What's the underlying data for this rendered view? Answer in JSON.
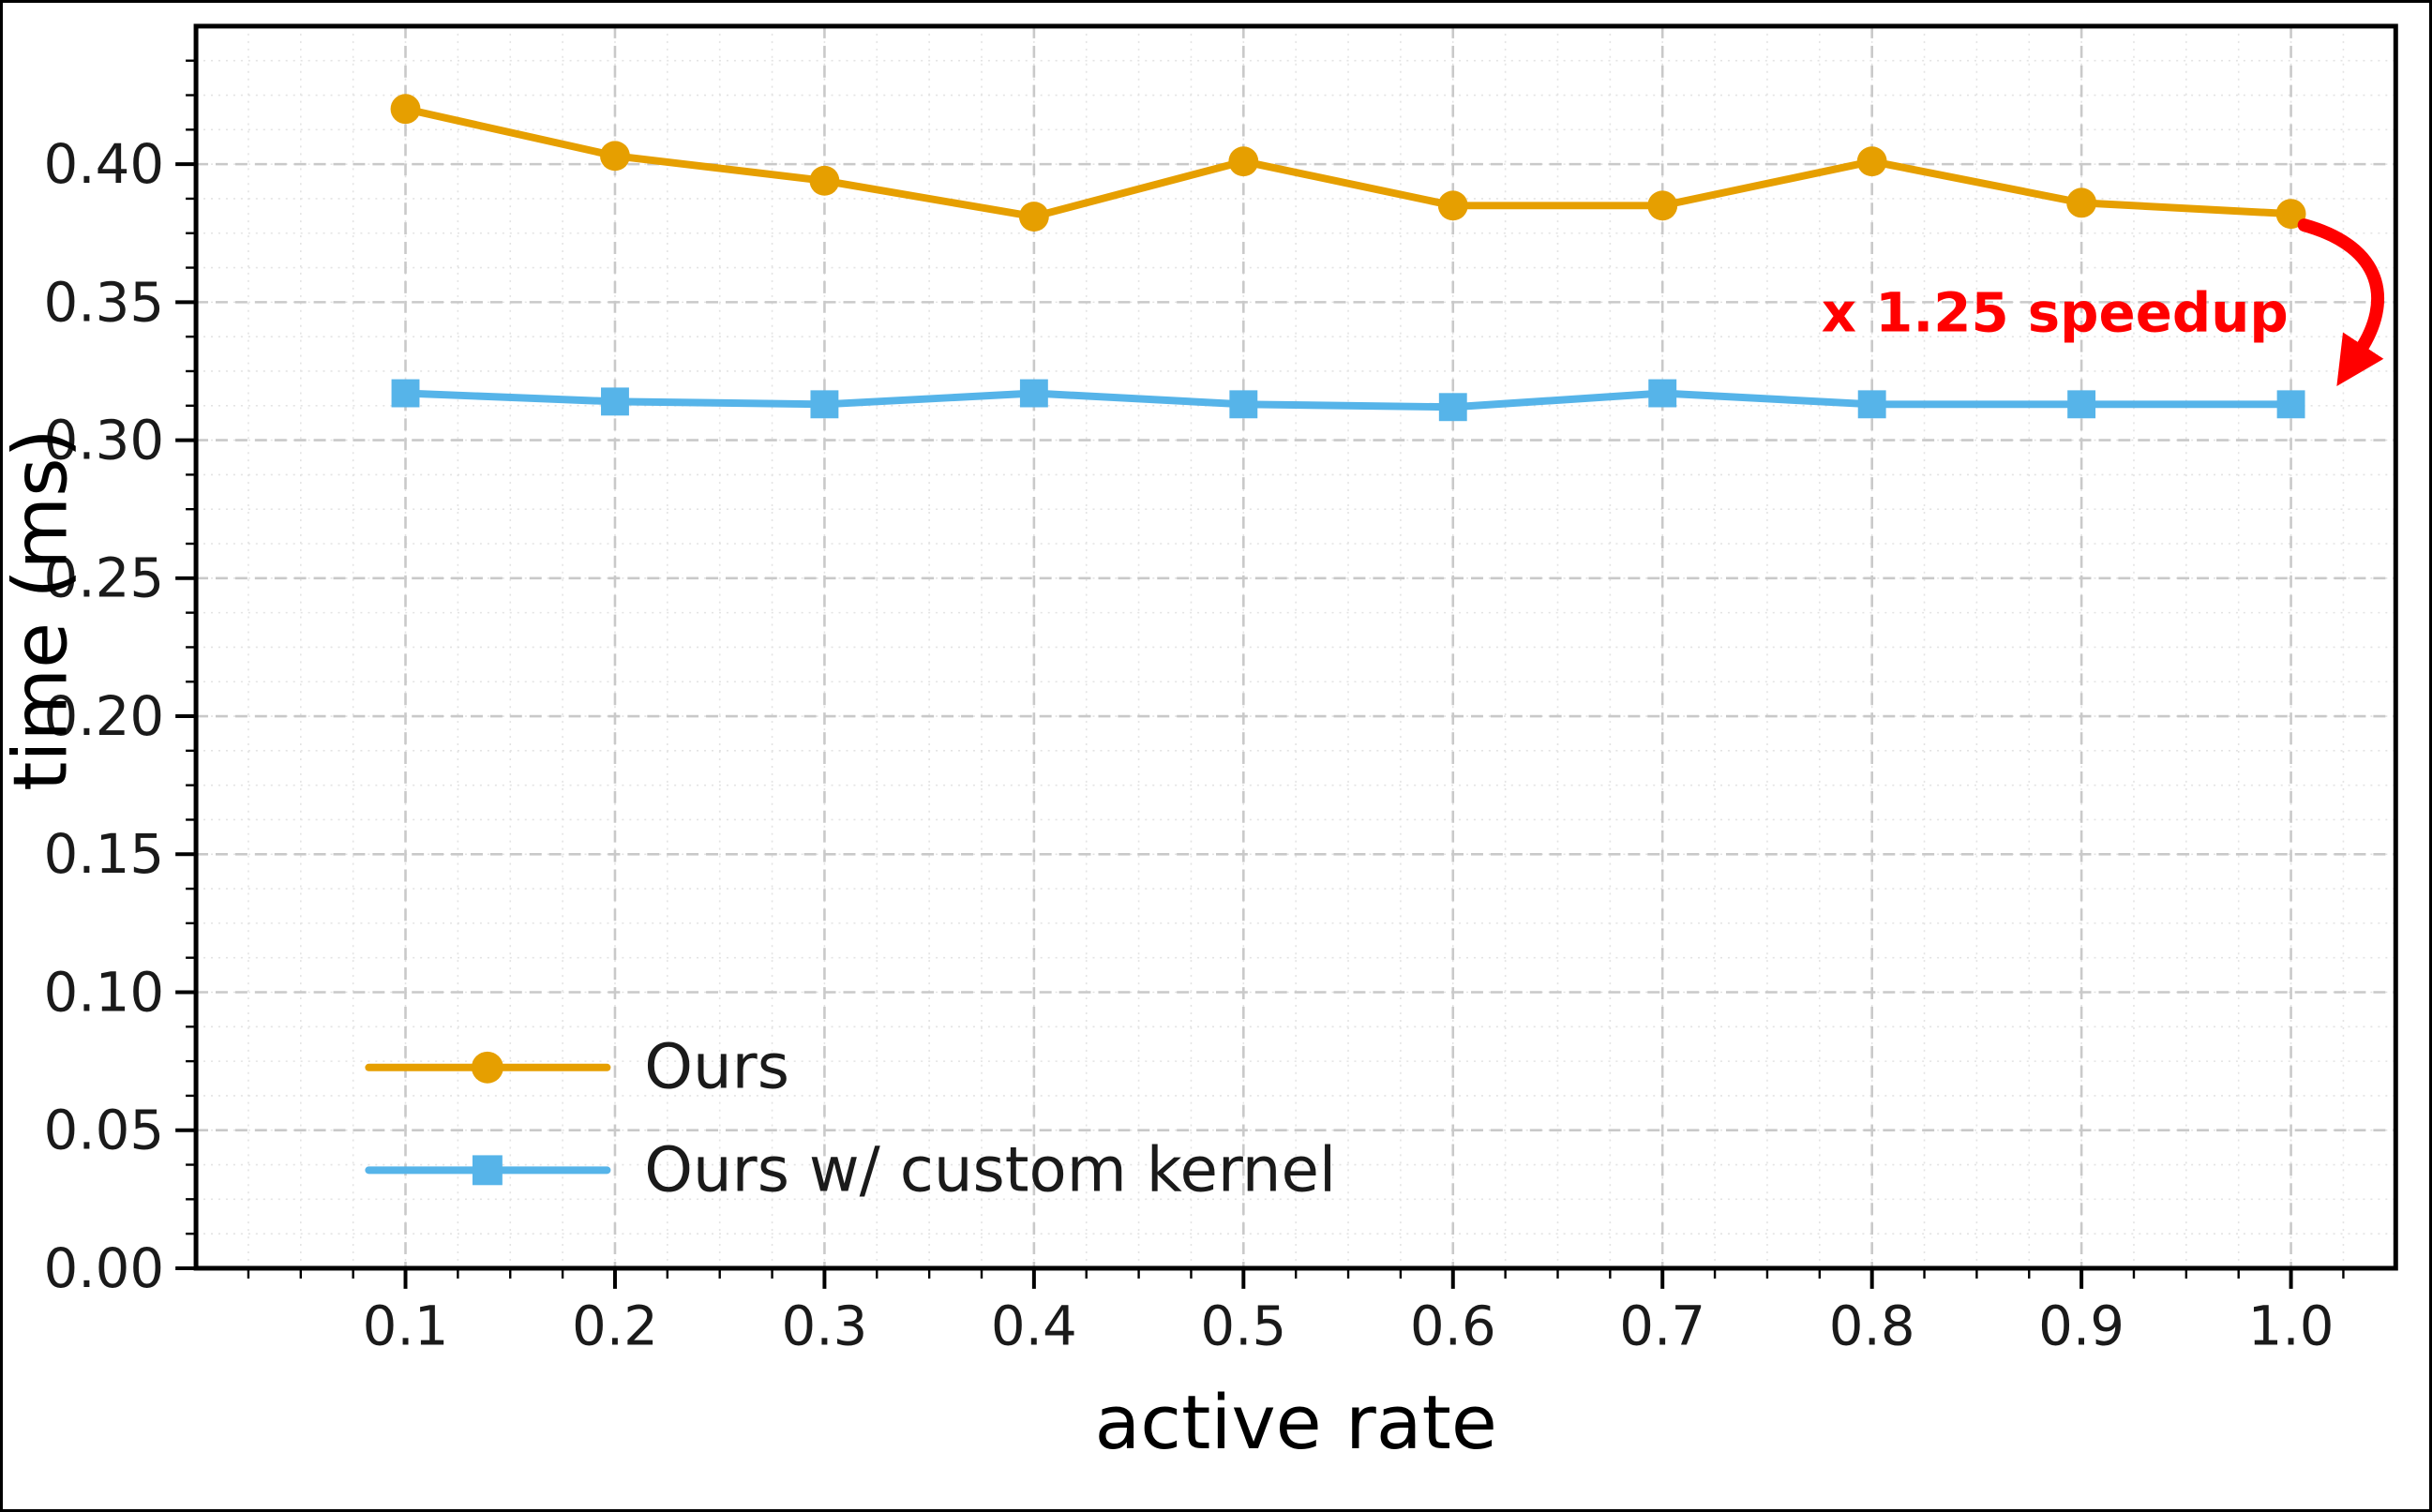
{
  "figure": {
    "background": "#ffffff",
    "border_color": "#000000",
    "text_color": "#000000",
    "tick_label_color": "#1a1a1a"
  },
  "chart_data": {
    "type": "line",
    "title": "",
    "xlabel": "active rate",
    "ylabel": "time (ms)",
    "x": [
      0.1,
      0.2,
      0.3,
      0.4,
      0.5,
      0.6,
      0.7,
      0.8,
      0.9,
      1.0
    ],
    "series": [
      {
        "name": "Ours",
        "color": "#E69F00",
        "marker": "circle",
        "values": [
          0.42,
          0.403,
          0.394,
          0.381,
          0.401,
          0.385,
          0.385,
          0.401,
          0.386,
          0.382
        ]
      },
      {
        "name": "Ours w/ custom kernel",
        "color": "#56B4E9",
        "marker": "square",
        "values": [
          0.317,
          0.314,
          0.313,
          0.317,
          0.313,
          0.312,
          0.317,
          0.313,
          0.313,
          0.313
        ]
      }
    ],
    "xlim": [
      0.0,
      1.05
    ],
    "ylim": [
      0.0,
      0.45
    ],
    "xticks": [
      0.1,
      0.2,
      0.3,
      0.4,
      0.5,
      0.6,
      0.7,
      0.8,
      0.9,
      1.0
    ],
    "xticklabels": [
      "0.1",
      "0.2",
      "0.3",
      "0.4",
      "0.5",
      "0.6",
      "0.7",
      "0.8",
      "0.9",
      "1.0"
    ],
    "yticks": [
      0.0,
      0.05,
      0.1,
      0.15,
      0.2,
      0.25,
      0.3,
      0.35,
      0.4
    ],
    "yticklabels": [
      "0.00",
      "0.05",
      "0.10",
      "0.15",
      "0.20",
      "0.25",
      "0.30",
      "0.35",
      "0.40"
    ],
    "grid": true,
    "grid_color": "#c9c9c9",
    "minor_grid_color": "#e3e3e3",
    "legend": {
      "position": "lower left",
      "entries": [
        "Ours",
        "Ours w/ custom kernel"
      ]
    },
    "annotation": {
      "text": "x 1.25 speedup",
      "color": "#FF0000"
    }
  }
}
